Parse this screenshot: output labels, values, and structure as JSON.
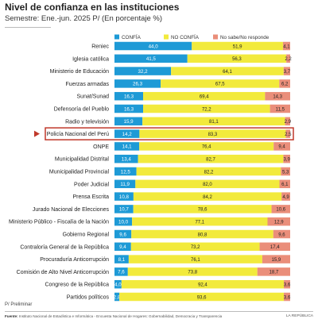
{
  "header": {
    "title": "Nivel de confianza en las instituciones",
    "subtitle": "Semestre: Ene.-jun. 2025 P/ (En porcentaje %)"
  },
  "chart_data": {
    "type": "bar",
    "stacked": true,
    "orientation": "horizontal",
    "legend_position": "top",
    "grid": false,
    "xlim": [
      0,
      100
    ],
    "categories": [
      "Reniec",
      "Iglesia católica",
      "Ministerio de Educación",
      "Fuerzas armadas",
      "Sunat/Sunad",
      "Defensoría del Pueblo",
      "Radio y televisión",
      "Policía Nacional del Perú",
      "ONPE",
      "Municipalidad Distrital",
      "Municipalidad Provincial",
      "Poder Judicial",
      "Prensa Escrita",
      "Jurado Nacional de Elecciones",
      "Ministerio Público - Fiscalía de la Nación",
      "Gobierno Regional",
      "Contraloría General de la República",
      "Procuraduría Anticorrupción",
      "Comisión de Alto Nivel Anticorrupción",
      "Congreso de la República",
      "Partidos políticos"
    ],
    "series": [
      {
        "name": "CONFÍA",
        "color": "#1e9ad6",
        "values": [
          44.0,
          41.5,
          32.2,
          26.3,
          16.3,
          16.3,
          15.9,
          14.2,
          14.1,
          13.4,
          12.5,
          11.9,
          10.8,
          10.7,
          10.0,
          9.6,
          9.4,
          8.1,
          7.6,
          4.0,
          2.8
        ]
      },
      {
        "name": "NO CONFÍA",
        "color": "#f2ea3c",
        "values": [
          51.9,
          56.3,
          64.1,
          67.5,
          69.4,
          72.2,
          81.1,
          83.3,
          76.4,
          82.7,
          82.2,
          82.0,
          84.2,
          78.6,
          77.1,
          80.8,
          73.2,
          76.1,
          73.8,
          92.4,
          93.6
        ]
      },
      {
        "name": "No sabe/No responde",
        "color": "#ea8e7a",
        "values": [
          4.1,
          2.2,
          3.7,
          6.2,
          14.3,
          11.5,
          2.9,
          2.5,
          9.4,
          3.9,
          5.3,
          6.1,
          4.9,
          10.6,
          12.9,
          9.6,
          17.4,
          15.9,
          18.7,
          3.6,
          3.6
        ]
      }
    ],
    "value_labels": [
      [
        "44,0",
        "51,9",
        "4,1"
      ],
      [
        "41,5",
        "56,3",
        "2,2"
      ],
      [
        "32,2",
        "64,1",
        "3,7"
      ],
      [
        "26,3",
        "67,5",
        "6,2"
      ],
      [
        "16,3",
        "69,4",
        "14,3"
      ],
      [
        "16,3",
        "72,2",
        "11,5"
      ],
      [
        "15,9",
        "81,1",
        "2,9"
      ],
      [
        "14,2",
        "83,3",
        "2,5"
      ],
      [
        "14,1",
        "76,4",
        "9,4"
      ],
      [
        "13,4",
        "82,7",
        "3,9"
      ],
      [
        "12,5",
        "82,2",
        "5,3"
      ],
      [
        "11,9",
        "82,0",
        "6,1"
      ],
      [
        "10,8",
        "84,2",
        "4,9"
      ],
      [
        "10,7",
        "78,6",
        "10,6"
      ],
      [
        "10,0",
        "77,1",
        "12,9"
      ],
      [
        "9,6",
        "80,8",
        "9,6"
      ],
      [
        "9,4",
        "73,2",
        "17,4"
      ],
      [
        "8,1",
        "76,1",
        "15,9"
      ],
      [
        "7,6",
        "73,8",
        "18,7"
      ],
      [
        "4,0",
        "92,4",
        "3,6"
      ],
      [
        "2,8",
        "93,6",
        "3,6"
      ]
    ],
    "highlight_category": "Policía Nacional del Perú",
    "highlight_color": "#c0392b"
  },
  "footnote": "P/ Preliminar",
  "source": {
    "label": "Fuente:",
    "text": "Instituto Nacional de Estadística e Informática - Encuesta Nacional de Hogares: Gobernabilidad, Democracia y Transparencia"
  },
  "brand": "LA REPÚBLICA"
}
